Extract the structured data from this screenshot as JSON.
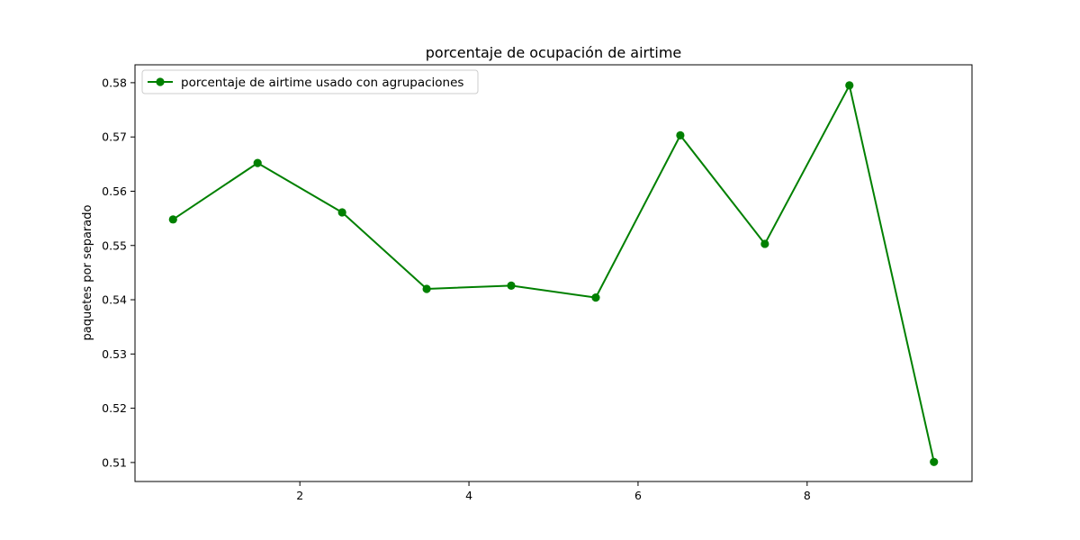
{
  "chart_data": {
    "type": "line",
    "title": "porcentaje de ocupación de airtime",
    "xlabel": "",
    "ylabel": "paquetes por separado",
    "xlim": [
      0.05,
      9.95
    ],
    "ylim": [
      0.5065,
      0.5833
    ],
    "x_ticks": [
      2,
      4,
      6,
      8
    ],
    "y_ticks": [
      0.51,
      0.52,
      0.53,
      0.54,
      0.55,
      0.56,
      0.57,
      0.58
    ],
    "grid": false,
    "legend_position": "top-left",
    "series": [
      {
        "name": "porcentaje de airtime usado con agrupaciones",
        "color": "#008000",
        "marker": "circle",
        "x": [
          0.5,
          1.5,
          2.5,
          3.5,
          4.5,
          5.5,
          6.5,
          7.5,
          8.5,
          9.5
        ],
        "y": [
          0.5548,
          0.5652,
          0.5561,
          0.542,
          0.5426,
          0.5404,
          0.5703,
          0.5503,
          0.5795,
          0.5101
        ]
      }
    ]
  }
}
